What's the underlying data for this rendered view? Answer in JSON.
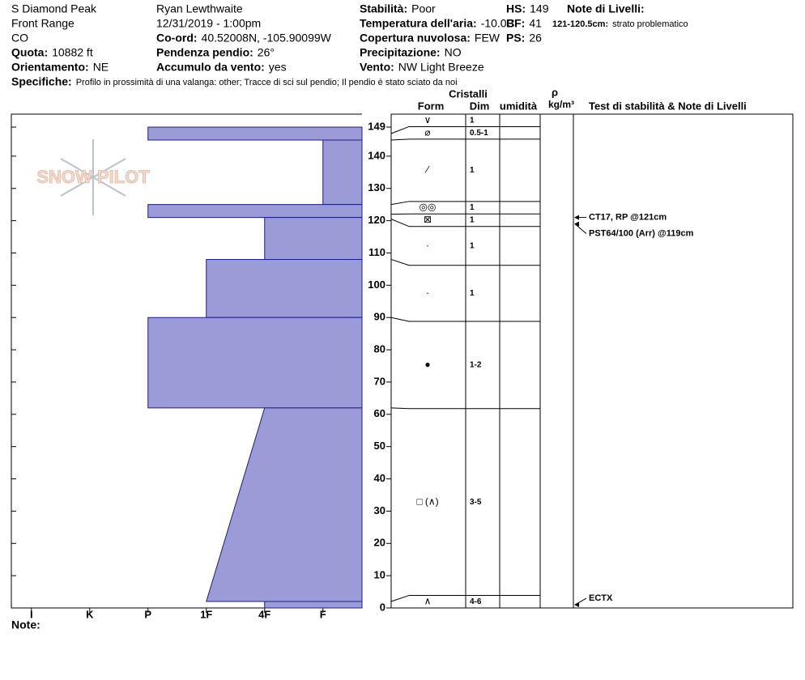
{
  "chart_data": {
    "type": "snow-profile",
    "header": {
      "fields": [
        {
          "value": "S Diamond Peak"
        },
        {
          "value": "Front Range"
        },
        {
          "value": "CO"
        },
        {
          "label": "Quota:",
          "value": "10882 ft"
        },
        {
          "label": "Orientamento:",
          "value": "NE"
        },
        {
          "value": "Ryan Lewthwaite"
        },
        {
          "value": "12/31/2019 - 1:00pm"
        },
        {
          "label": "Co-ord:",
          "value": "40.52008N, -105.90099W"
        },
        {
          "label": "Pendenza pendio:",
          "value": "26°"
        },
        {
          "label": "Accumulo da vento:",
          "value": "yes"
        },
        {
          "label": "Stabilità:",
          "value": "Poor"
        },
        {
          "label": "Temperatura dell'aria:",
          "value": "-10.0C"
        },
        {
          "label": "Copertura nuvolosa:",
          "value": "FEW"
        },
        {
          "label": "Precipitazione:",
          "value": "NO"
        },
        {
          "label": "Vento:",
          "value": "NW Light Breeze"
        },
        {
          "label": "HS:",
          "value": "149"
        },
        {
          "label": "BF:",
          "value": "41"
        },
        {
          "label": "PS:",
          "value": "26"
        },
        {
          "label": "Note di Livelli:"
        }
      ],
      "layer_note": {
        "label": "121-120.5cm:",
        "value": "strato problematico"
      },
      "specifics": {
        "label": "Specifiche:",
        "value": "Profilo in prossimità di una valanga: other;  Tracce di sci sul pendio;  Il pendio è stato sciato da noi"
      },
      "note": "Note:"
    },
    "logo": "SNOW PILOT",
    "columns": {
      "crystals": "Cristalli",
      "form": "Form",
      "size": "Dim",
      "moisture": "umidità",
      "density": "ρ",
      "density_unit": "kg/m³",
      "tests": "Test di stabilità & Note di Livelli"
    },
    "color": "#9b9bd8",
    "xlim": [
      6.33,
      0.33
    ],
    "xticks": [
      {
        "value": 6,
        "label": "I"
      },
      {
        "value": 5,
        "label": "K"
      },
      {
        "value": 4,
        "label": "P"
      },
      {
        "value": 3,
        "label": "1F"
      },
      {
        "value": 2,
        "label": "4F"
      },
      {
        "value": 1,
        "label": "F"
      }
    ],
    "ylim": [
      0,
      149
    ],
    "yticks": [
      0,
      10,
      20,
      30,
      40,
      50,
      60,
      70,
      80,
      90,
      100,
      110,
      120,
      130,
      140,
      149
    ],
    "hardness_layers": [
      {
        "top": 149,
        "bottom": 145,
        "hardness": 4
      },
      {
        "top": 145,
        "bottom": 125,
        "hardness": 1
      },
      {
        "top": 125,
        "bottom": 121,
        "hardness": 4
      },
      {
        "top": 121,
        "bottom": 108,
        "hardness": 2
      },
      {
        "top": 108,
        "bottom": 90,
        "hardness": 3
      },
      {
        "top": 90,
        "bottom": 62,
        "hardness": 4
      },
      {
        "top": 62,
        "bottom": 2,
        "hardness": 2,
        "hardness_bottom": 3
      },
      {
        "top": 2,
        "bottom": 0,
        "hardness": 2
      }
    ],
    "layers": [
      {
        "top": 149,
        "bottom": 147,
        "form": "∨",
        "size": "1"
      },
      {
        "top": 147,
        "bottom": 145,
        "form": "⌀",
        "size": "0.5-1"
      },
      {
        "top": 145,
        "bottom": 125,
        "form": "⁄",
        "size": "1"
      },
      {
        "top": 125,
        "bottom": 122,
        "form": "◎◎",
        "size": "1"
      },
      {
        "top": 122,
        "bottom": 120.5,
        "form": "⊠",
        "size": "1"
      },
      {
        "top": 120.5,
        "bottom": 108,
        "form": "·",
        "size": "1"
      },
      {
        "top": 108,
        "bottom": 90,
        "form": "·",
        "size": "1"
      },
      {
        "top": 90,
        "bottom": 62,
        "form": "●",
        "size": "1-2"
      },
      {
        "top": 62,
        "bottom": 2,
        "form": "□ (∧)",
        "size": "3-5"
      },
      {
        "top": 2,
        "bottom": 0,
        "form": "∧",
        "size": "4-6"
      }
    ],
    "tests": [
      {
        "result": "CT17, RP @121cm",
        "depth": 121
      },
      {
        "result": "PST64/100 (Arr) @119cm",
        "depth": 119
      },
      {
        "result": "ECTX",
        "depth": 1
      }
    ]
  }
}
